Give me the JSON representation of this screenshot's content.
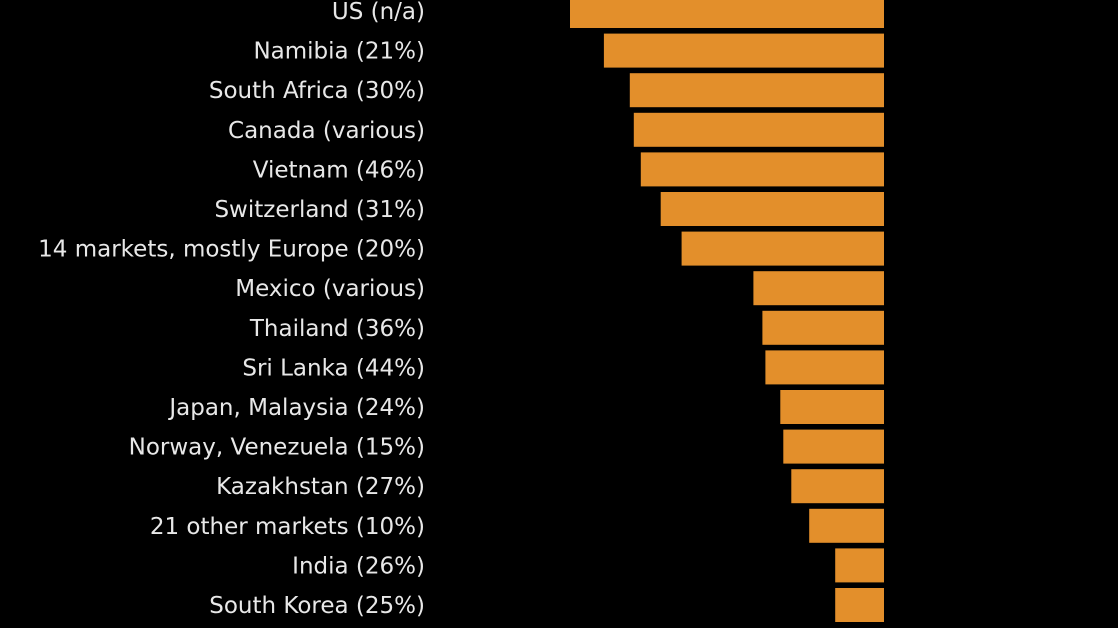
{
  "chart_data": {
    "type": "bar",
    "orientation": "horizontal",
    "categories": [
      "US (n/a)",
      "Namibia (21%)",
      "South Africa (30%)",
      "Canada (various)",
      "Vietnam (46%)",
      "Switzerland (31%)",
      "14 markets, mostly Europe (20%)",
      "Mexico (various)",
      "Thailand (36%)",
      "Sri Lanka (44%)",
      "Japan, Malaysia (24%)",
      "Norway, Venezuela (15%)",
      "Kazakhstan (27%)",
      "21 other markets (10%)",
      "India (26%)",
      "South Korea (25%)"
    ],
    "values": [
      -31.5,
      -28.1,
      -25.5,
      -25.1,
      -24.4,
      -22.4,
      -20.3,
      -13.1,
      -12.2,
      -11.9,
      -10.4,
      -10.1,
      -9.3,
      -7.5,
      -4.9,
      -4.9
    ],
    "xlim": [
      -31.5,
      0
    ],
    "title": "",
    "xlabel": "",
    "ylabel": "",
    "grid": false,
    "legend": "none",
    "colors": {
      "background": "#000000",
      "bar": "#e38f2b",
      "label": "#e8e8e8"
    }
  }
}
